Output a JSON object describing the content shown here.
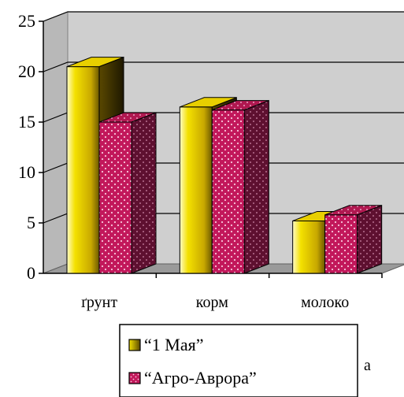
{
  "chart_data": {
    "type": "bar",
    "categories": [
      "ґрунт",
      "корм",
      "молоко"
    ],
    "series": [
      {
        "name": "“1 Мая”",
        "values": [
          20.5,
          16.5,
          5.2
        ],
        "color": "#e6d200"
      },
      {
        "name": "“Агро-Аврора”",
        "values": [
          15.0,
          16.2,
          5.8
        ],
        "color": "#c2185b"
      }
    ],
    "ylim": [
      0,
      25
    ],
    "yticks": [
      "0",
      "5",
      "10",
      "15",
      "20",
      "25"
    ],
    "grid": true,
    "legend_position": "bottom",
    "wall_color": "#cfcfcf",
    "panel_letter": "а"
  }
}
